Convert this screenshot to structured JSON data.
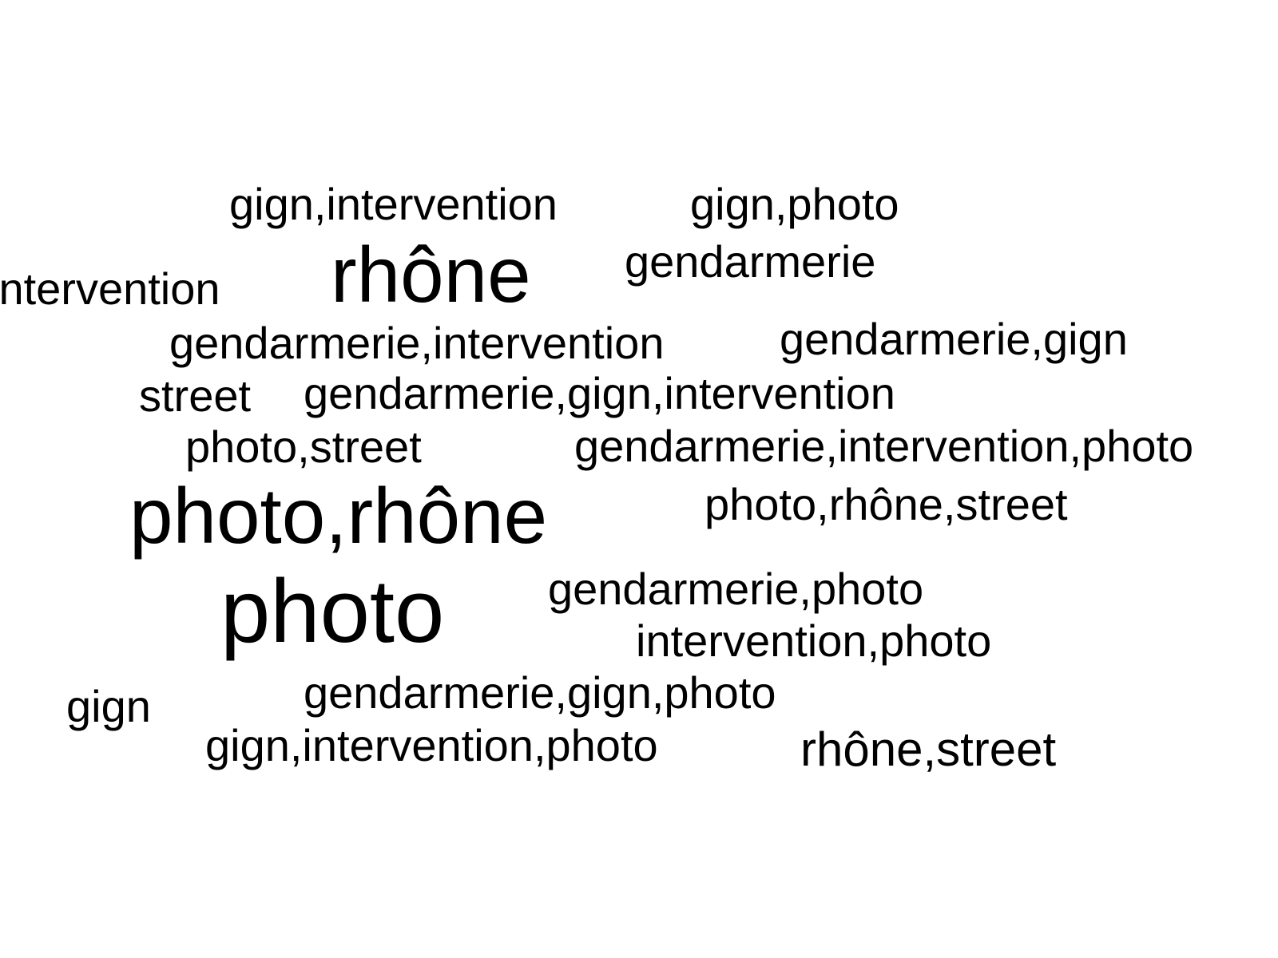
{
  "wordcloud": {
    "words": [
      {
        "text": "gign,intervention"
      },
      {
        "text": "gign,photo"
      },
      {
        "text": "rhône"
      },
      {
        "text": "gendarmerie"
      },
      {
        "text": "intervention"
      },
      {
        "text": "gendarmerie,intervention"
      },
      {
        "text": "gendarmerie,gign"
      },
      {
        "text": "street"
      },
      {
        "text": "gendarmerie,gign,intervention"
      },
      {
        "text": "photo,street"
      },
      {
        "text": "gendarmerie,intervention,photo"
      },
      {
        "text": "photo,rhône"
      },
      {
        "text": "photo,rhône,street"
      },
      {
        "text": "photo"
      },
      {
        "text": "gendarmerie,photo"
      },
      {
        "text": "intervention,photo"
      },
      {
        "text": "gendarmerie,gign,photo"
      },
      {
        "text": "gign"
      },
      {
        "text": "gign,intervention,photo"
      },
      {
        "text": "rhône,street"
      }
    ],
    "text_color": "#000000",
    "background_color": "#ffffff"
  }
}
